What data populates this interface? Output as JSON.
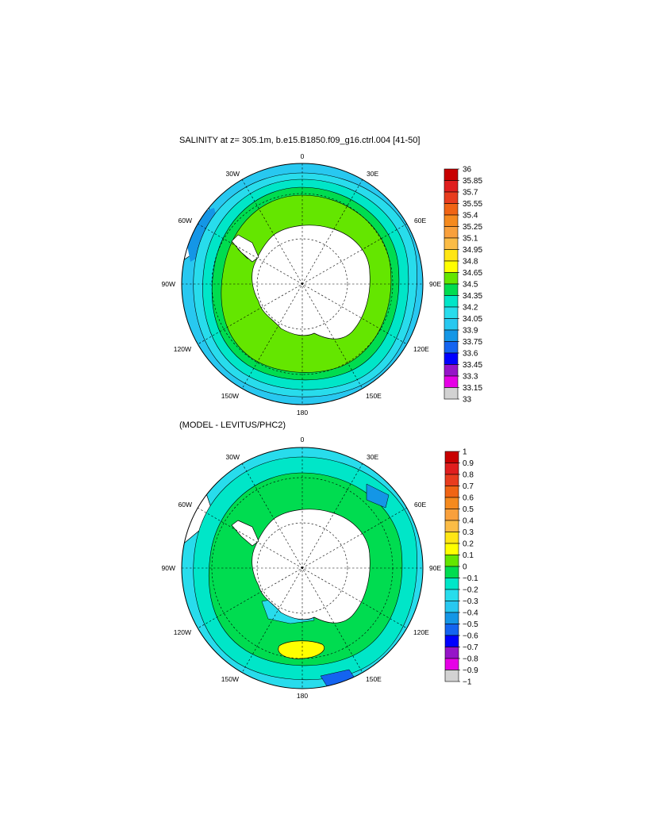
{
  "panels": [
    {
      "id": "top",
      "title": "SALINITY at z= 305.1m, b.e15.B1850.f09_g16.ctrl.004 [41-50]",
      "lon_labels": [
        "0",
        "30E",
        "60E",
        "90E",
        "120E",
        "150E",
        "180",
        "150W",
        "120W",
        "90W",
        "60W",
        "30W"
      ],
      "colorbar": {
        "labels": [
          "36",
          "35.85",
          "35.7",
          "35.55",
          "35.4",
          "35.25",
          "35.1",
          "34.95",
          "34.8",
          "34.65",
          "34.5",
          "34.35",
          "34.2",
          "34.05",
          "33.9",
          "33.75",
          "33.6",
          "33.45",
          "33.3",
          "33.15",
          "33"
        ],
        "colors": [
          "#c80000",
          "#e01e1e",
          "#e83c1e",
          "#f06414",
          "#f58a1e",
          "#f9a03c",
          "#fbbc46",
          "#ffe614",
          "#ffff00",
          "#64e600",
          "#00dc50",
          "#00e6c8",
          "#28dcec",
          "#28c8f0",
          "#1496e6",
          "#1464f0",
          "#0000ff",
          "#9614c8",
          "#e600e6",
          "#d2d2d2",
          "#787878"
        ]
      }
    },
    {
      "id": "bottom",
      "title": "(MODEL - LEVITUS/PHC2)",
      "lon_labels": [
        "0",
        "30E",
        "60E",
        "90E",
        "120E",
        "150E",
        "180",
        "150W",
        "120W",
        "90W",
        "60W",
        "30W"
      ],
      "colorbar": {
        "labels": [
          "1",
          "0.9",
          "0.8",
          "0.7",
          "0.6",
          "0.5",
          "0.4",
          "0.3",
          "0.2",
          "0.1",
          "0",
          "−0.1",
          "−0.2",
          "−0.3",
          "−0.4",
          "−0.5",
          "−0.6",
          "−0.7",
          "−0.8",
          "−0.9",
          "−1"
        ],
        "colors": [
          "#c80000",
          "#e01e1e",
          "#e83c1e",
          "#f06414",
          "#f58a1e",
          "#f9a03c",
          "#fbbc46",
          "#ffe614",
          "#ffff00",
          "#64e600",
          "#00dc50",
          "#00e6c8",
          "#28dcec",
          "#28c8f0",
          "#1496e6",
          "#1464f0",
          "#0000ff",
          "#9614c8",
          "#e600e6",
          "#d2d2d2",
          "#787878"
        ]
      }
    }
  ]
}
